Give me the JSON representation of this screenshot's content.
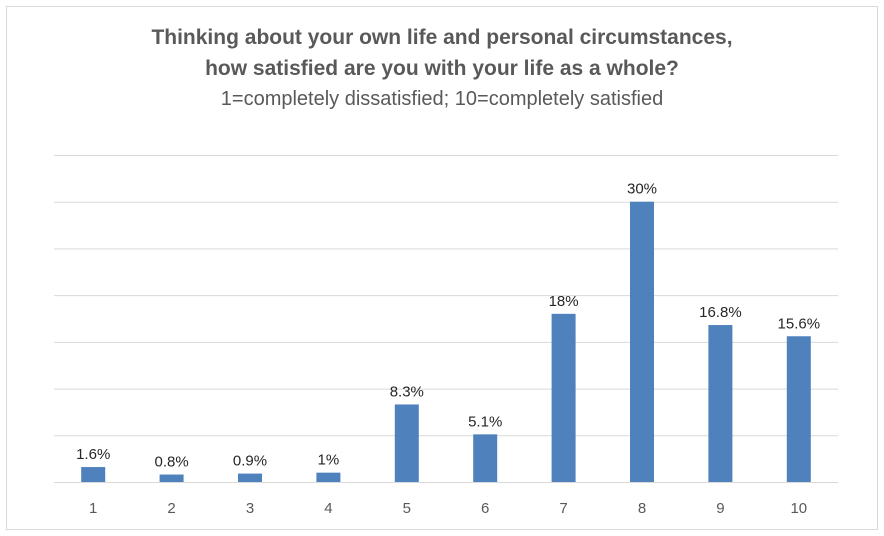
{
  "chart_data": {
    "type": "bar",
    "title": "Thinking about your own life and personal circumstances,",
    "title_line2": "how satisfied are you with your life as a whole?",
    "subtitle": "1=completely dissatisfied; 10=completely satisfied",
    "categories": [
      "1",
      "2",
      "3",
      "4",
      "5",
      "6",
      "7",
      "8",
      "9",
      "10"
    ],
    "values": [
      1.6,
      0.8,
      0.9,
      1,
      8.3,
      5.1,
      18,
      30,
      16.8,
      15.6
    ],
    "data_labels": [
      "1.6%",
      "0.8%",
      "0.9%",
      "1%",
      "8.3%",
      "5.1%",
      "18%",
      "30%",
      "16.8%",
      "15.6%"
    ],
    "ylim": [
      0,
      35
    ],
    "grid": true,
    "bar_color": "#4f81bd",
    "xlabel": "",
    "ylabel": ""
  }
}
